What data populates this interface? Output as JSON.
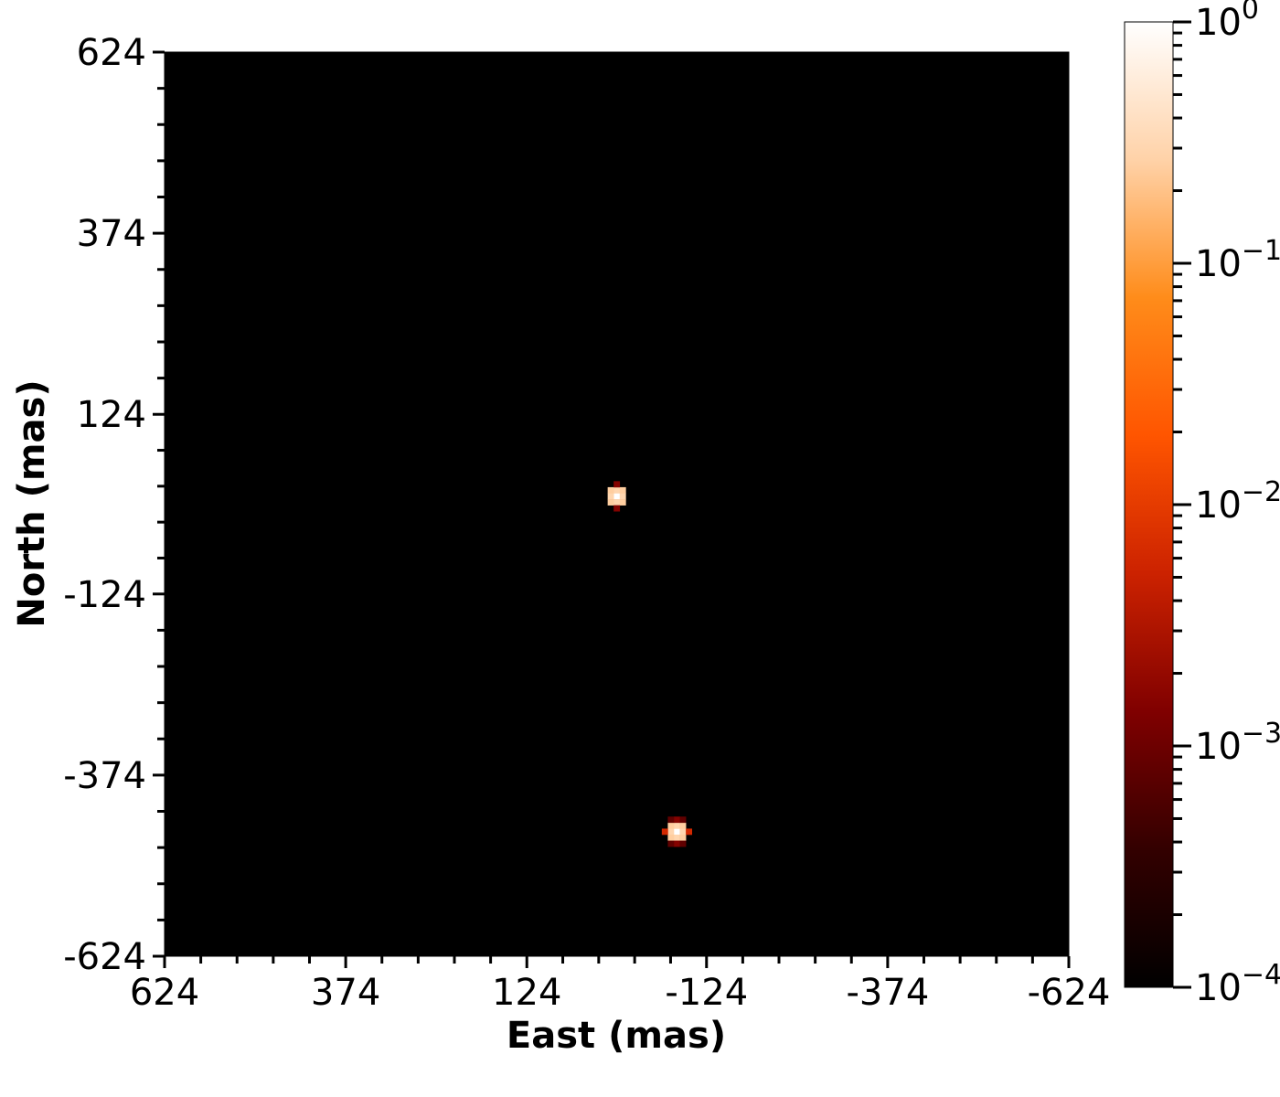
{
  "chart_data": {
    "type": "heatmap",
    "title": "",
    "xlabel": "East (mas)",
    "ylabel": "North (mas)",
    "xlim": [
      624,
      -624
    ],
    "ylim": [
      -624,
      624
    ],
    "x_major_ticks": [
      624,
      374,
      124,
      -124,
      -374,
      -624
    ],
    "x_tick_labels": [
      "624",
      "374",
      "124",
      "-124",
      "-374",
      "-624"
    ],
    "y_major_ticks": [
      624,
      374,
      124,
      -124,
      -374,
      -624
    ],
    "y_tick_labels": [
      "624",
      "374",
      "124",
      "-124",
      "-374",
      "-624"
    ],
    "minor_tick_step": 50,
    "pixel_size_mas": 8.3,
    "background": "#000000",
    "colorbar": {
      "scale": "log",
      "range": [
        0.0001,
        1
      ],
      "tick_labels": [
        {
          "base": "10",
          "exp": "0"
        },
        {
          "base": "10",
          "exp": "−1"
        },
        {
          "base": "10",
          "exp": "−2"
        },
        {
          "base": "10",
          "exp": "−3"
        },
        {
          "base": "10",
          "exp": "−4"
        }
      ],
      "colormap_stops": [
        "#000000",
        "#330000",
        "#800000",
        "#cc2200",
        "#ff5500",
        "#ff8c1a",
        "#ffd2a8",
        "#ffffff"
      ]
    },
    "sources": [
      {
        "name": "",
        "center": [
          0,
          11
        ],
        "pixels": [
          {
            "dx": 0,
            "dy": 0,
            "v": 1.0
          },
          {
            "dx": -1,
            "dy": 0,
            "v": 0.3
          },
          {
            "dx": 1,
            "dy": 0,
            "v": 0.3
          },
          {
            "dx": 0,
            "dy": 1,
            "v": 0.3
          },
          {
            "dx": 0,
            "dy": -1,
            "v": 0.3
          },
          {
            "dx": -1,
            "dy": 1,
            "v": 0.25
          },
          {
            "dx": 1,
            "dy": 1,
            "v": 0.25
          },
          {
            "dx": -1,
            "dy": -1,
            "v": 0.25
          },
          {
            "dx": 1,
            "dy": -1,
            "v": 0.25
          },
          {
            "dx": 0,
            "dy": 2,
            "v": 0.0015
          },
          {
            "dx": 0,
            "dy": -2,
            "v": 0.0015
          }
        ]
      },
      {
        "name": "",
        "center": [
          -83,
          -452
        ],
        "pixels": [
          {
            "dx": 0,
            "dy": 0,
            "v": 1.0
          },
          {
            "dx": -1,
            "dy": 0,
            "v": 0.3
          },
          {
            "dx": 1,
            "dy": 0,
            "v": 0.3
          },
          {
            "dx": 0,
            "dy": 1,
            "v": 0.3
          },
          {
            "dx": 0,
            "dy": -1,
            "v": 0.3
          },
          {
            "dx": -1,
            "dy": 1,
            "v": 0.25
          },
          {
            "dx": 1,
            "dy": 1,
            "v": 0.25
          },
          {
            "dx": -1,
            "dy": -1,
            "v": 0.25
          },
          {
            "dx": 1,
            "dy": -1,
            "v": 0.25
          },
          {
            "dx": -2,
            "dy": 0,
            "v": 0.006
          },
          {
            "dx": 2,
            "dy": 0,
            "v": 0.006
          },
          {
            "dx": 0,
            "dy": 2,
            "v": 0.0015
          },
          {
            "dx": 0,
            "dy": -2,
            "v": 0.0015
          },
          {
            "dx": -1,
            "dy": 2,
            "v": 0.0008
          },
          {
            "dx": 1,
            "dy": 2,
            "v": 0.0008
          },
          {
            "dx": -1,
            "dy": -2,
            "v": 0.0008
          },
          {
            "dx": 1,
            "dy": -2,
            "v": 0.0008
          }
        ]
      }
    ]
  }
}
